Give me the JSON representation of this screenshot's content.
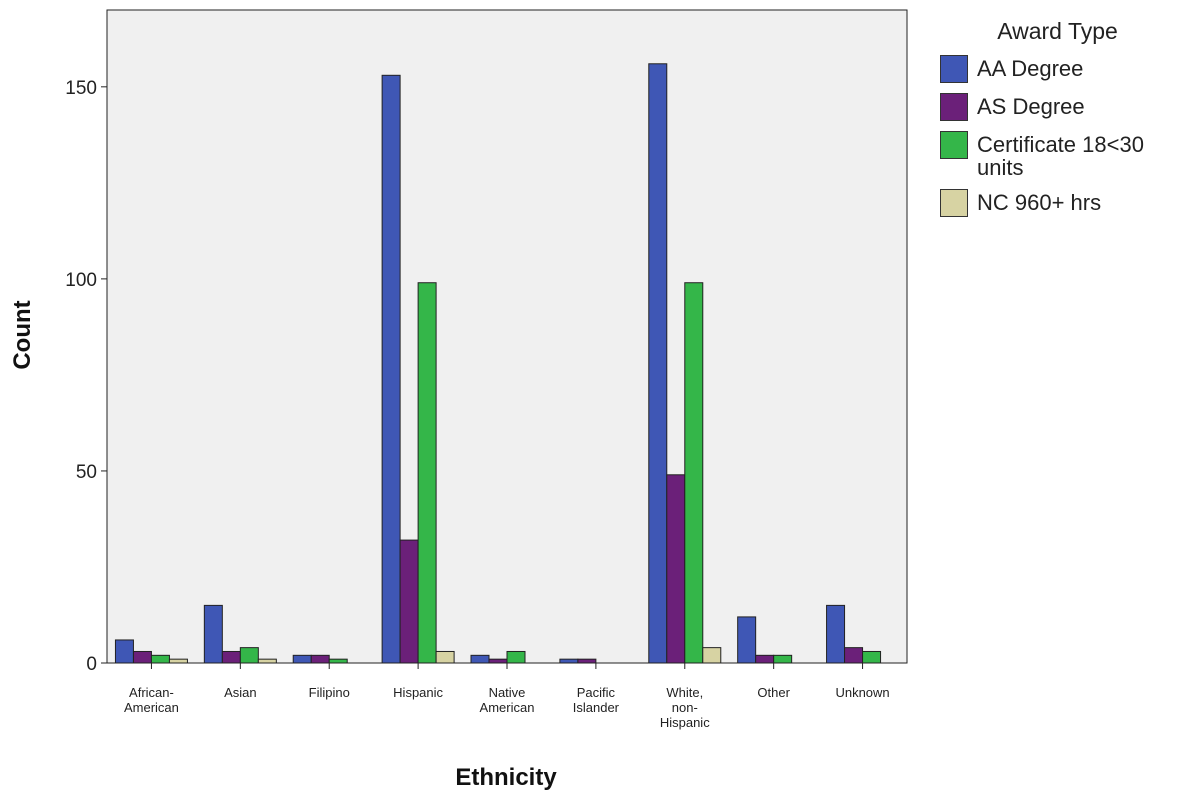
{
  "chart_data": {
    "type": "bar",
    "xlabel": "Ethnicity",
    "ylabel": "Count",
    "ylim": [
      0,
      170
    ],
    "yticks": [
      "0",
      "50",
      "100",
      "150"
    ],
    "grid": false,
    "legend_title": "Award Type",
    "legend_position": "right",
    "categories": [
      [
        "African-",
        "American"
      ],
      [
        "Asian"
      ],
      [
        "Filipino"
      ],
      [
        "Hispanic"
      ],
      [
        "Native",
        "American"
      ],
      [
        "Pacific",
        "Islander"
      ],
      [
        "White,",
        "non-",
        "Hispanic"
      ],
      [
        "Other"
      ],
      [
        "Unknown"
      ]
    ],
    "series": [
      {
        "name": "AA Degree",
        "color": "#3F57B5",
        "values": [
          6,
          15,
          2,
          153,
          2,
          1,
          156,
          12,
          15
        ]
      },
      {
        "name": "AS Degree",
        "color": "#6B2079",
        "values": [
          3,
          3,
          2,
          32,
          1,
          1,
          49,
          2,
          4
        ]
      },
      {
        "name": "Certificate 18<30 units",
        "color": "#34B649",
        "values": [
          2,
          4,
          1,
          99,
          3,
          0,
          99,
          2,
          3
        ]
      },
      {
        "name": "NC 960+ hrs",
        "color": "#D7D3A3",
        "values": [
          1,
          1,
          0,
          3,
          0,
          0,
          4,
          0,
          0
        ]
      }
    ],
    "plot_background": "#F0F0F0"
  }
}
